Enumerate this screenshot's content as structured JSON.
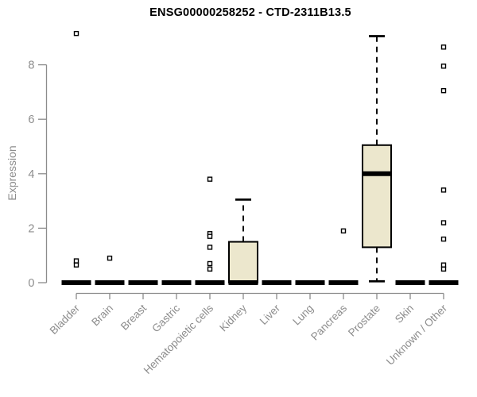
{
  "chart_data": {
    "type": "boxplot",
    "title": "ENSG00000258252 - CTD-2311B13.5",
    "ylabel": "Expression",
    "ylim": [
      0,
      9.3
    ],
    "yticks": [
      0,
      2,
      4,
      6,
      8
    ],
    "grid": false,
    "legend": "none",
    "categories": [
      "Bladder",
      "Brain",
      "Breast",
      "Gastric",
      "Hematopoietic cells",
      "Kidney",
      "Liver",
      "Lung",
      "Pancreas",
      "Prostate",
      "Skin",
      "Unknown / Other"
    ],
    "boxes": [
      {
        "category": "Bladder",
        "whisker_low": 0,
        "q1": 0,
        "median": 0,
        "q3": 0,
        "whisker_high": 0,
        "outliers": [
          9.15,
          0.8,
          0.65
        ]
      },
      {
        "category": "Brain",
        "whisker_low": 0,
        "q1": 0,
        "median": 0,
        "q3": 0,
        "whisker_high": 0,
        "outliers": [
          0.9
        ]
      },
      {
        "category": "Breast",
        "whisker_low": 0,
        "q1": 0,
        "median": 0,
        "q3": 0,
        "whisker_high": 0,
        "outliers": []
      },
      {
        "category": "Gastric",
        "whisker_low": 0,
        "q1": 0,
        "median": 0,
        "q3": 0,
        "whisker_high": 0,
        "outliers": []
      },
      {
        "category": "Hematopoietic cells",
        "whisker_low": 0,
        "q1": 0,
        "median": 0,
        "q3": 0,
        "whisker_high": 0,
        "outliers": [
          3.8,
          1.8,
          1.7,
          1.3,
          0.7,
          0.5
        ]
      },
      {
        "category": "Kidney",
        "whisker_low": 0,
        "q1": 0,
        "median": 0,
        "q3": 1.5,
        "whisker_high": 3.05,
        "outliers": []
      },
      {
        "category": "Liver",
        "whisker_low": 0,
        "q1": 0,
        "median": 0,
        "q3": 0,
        "whisker_high": 0,
        "outliers": []
      },
      {
        "category": "Lung",
        "whisker_low": 0,
        "q1": 0,
        "median": 0,
        "q3": 0,
        "whisker_high": 0,
        "outliers": []
      },
      {
        "category": "Pancreas",
        "whisker_low": 0,
        "q1": 0,
        "median": 0,
        "q3": 0,
        "whisker_high": 0,
        "outliers": [
          1.9
        ]
      },
      {
        "category": "Prostate",
        "whisker_low": 0.05,
        "q1": 1.3,
        "median": 4,
        "q3": 5.05,
        "whisker_high": 9.05,
        "outliers": []
      },
      {
        "category": "Skin",
        "whisker_low": 0,
        "q1": 0,
        "median": 0,
        "q3": 0,
        "whisker_high": 0,
        "outliers": []
      },
      {
        "category": "Unknown / Other",
        "whisker_low": 0,
        "q1": 0,
        "median": 0,
        "q3": 0,
        "whisker_high": 0,
        "outliers": [
          8.65,
          7.95,
          7.05,
          3.4,
          2.2,
          1.6,
          0.65,
          0.5
        ]
      }
    ],
    "colors": {
      "box_fill": "#ece7cd",
      "box_stroke": "#000000",
      "median": "#000000",
      "whisker": "#000000",
      "outlier_stroke": "#000000",
      "outlier_fill": "#ffffff",
      "axis_line": "#8c8c8c",
      "axis_text": "#8c8c8c",
      "title": "#000000",
      "background": "#ffffff"
    }
  }
}
